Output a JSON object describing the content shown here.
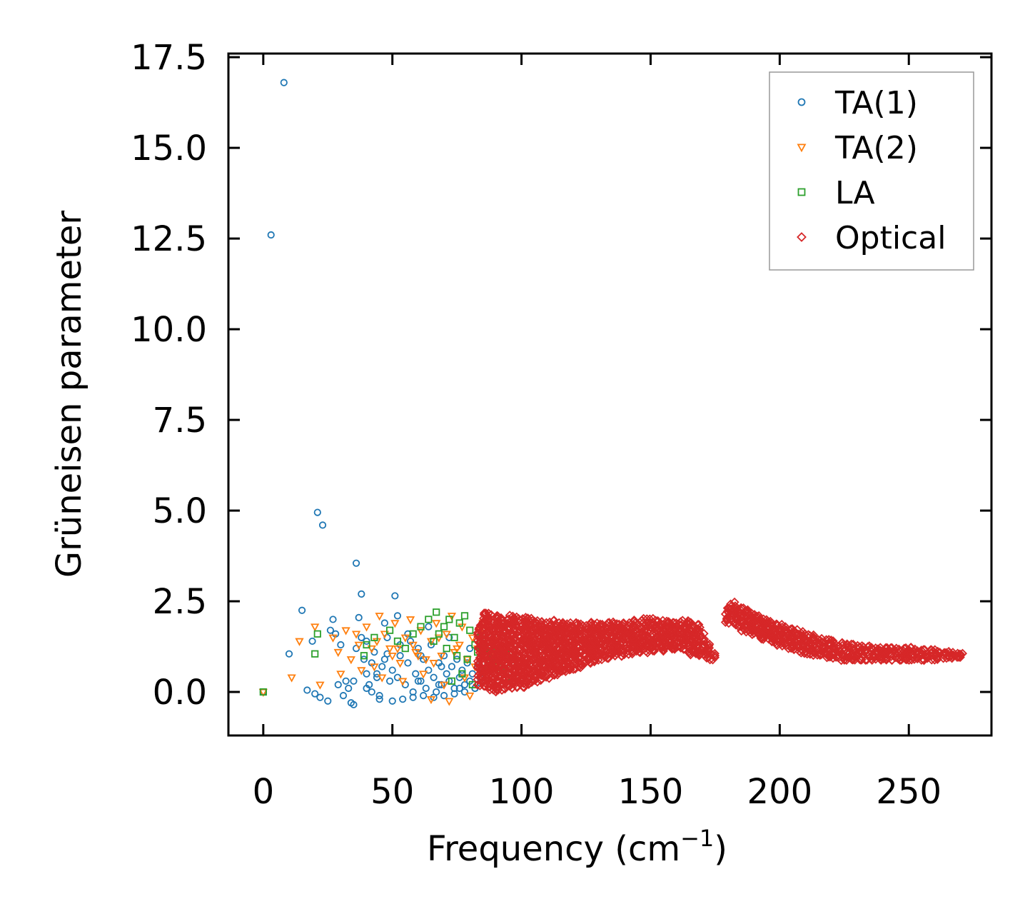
{
  "chart_data": {
    "type": "scatter",
    "title": "",
    "xlabel": "Frequency (cm",
    "xlabel_sup": "−1",
    "xlabel_close": ")",
    "ylabel": "Grüneisen parameter",
    "xlim": [
      -13.5,
      282
    ],
    "ylim": [
      -1.2,
      17.6
    ],
    "xticks": [
      0,
      50,
      100,
      150,
      200,
      250
    ],
    "xtick_labels": [
      "0",
      "50",
      "100",
      "150",
      "200",
      "250"
    ],
    "yticks": [
      0,
      2.5,
      5,
      7.5,
      10,
      12.5,
      15,
      17.5
    ],
    "ytick_labels": [
      "0.0",
      "2.5",
      "5.0",
      "7.5",
      "10.0",
      "12.5",
      "15.0",
      "17.5"
    ],
    "legend_position": "top-right",
    "series": [
      {
        "name": "TA(1)",
        "marker": "circle",
        "color": "#1f77b4",
        "x": [
          0,
          3,
          8,
          21,
          23,
          36,
          38,
          51,
          15,
          10,
          17,
          20,
          22,
          25,
          19,
          27,
          28,
          30,
          32,
          33,
          34,
          35,
          36,
          37,
          38,
          39,
          40,
          41,
          42,
          43,
          44,
          45,
          46,
          47,
          48,
          49,
          50,
          52,
          53,
          55,
          56,
          57,
          58,
          59,
          60,
          61,
          62,
          63,
          64,
          65,
          66,
          67,
          68,
          69,
          70,
          71,
          72,
          73,
          74,
          75,
          76,
          77,
          78,
          79,
          80,
          81,
          82,
          83,
          84,
          85,
          26,
          29,
          31,
          40,
          45,
          50,
          54,
          58,
          62,
          66,
          70,
          74,
          78,
          82,
          35,
          42,
          48,
          56,
          64,
          72,
          80,
          44,
          52,
          60,
          68,
          76,
          84,
          40,
          47,
          53,
          61,
          69,
          77
        ],
        "y": [
          0,
          12.6,
          16.8,
          4.95,
          4.6,
          3.55,
          2.7,
          2.65,
          2.25,
          1.05,
          0.05,
          -0.05,
          -0.15,
          -0.25,
          1.4,
          2.0,
          1.6,
          1.3,
          0.3,
          0.1,
          -0.3,
          -0.35,
          1.2,
          2.05,
          1.5,
          0.9,
          0.5,
          0.2,
          0.8,
          1.1,
          0.4,
          -0.1,
          0.7,
          1.9,
          1.5,
          0.3,
          0.6,
          2.1,
          1.0,
          0.2,
          0.8,
          1.4,
          0.0,
          0.5,
          1.2,
          0.3,
          0.9,
          0.1,
          0.6,
          1.3,
          0.4,
          0.0,
          0.8,
          0.2,
          1.0,
          0.5,
          0.3,
          0.7,
          0.1,
          0.9,
          0.4,
          0.6,
          0.2,
          0.8,
          0.3,
          0.5,
          0.1,
          0.7,
          0.4,
          0.6,
          1.7,
          0.2,
          -0.1,
          0.1,
          -0.2,
          -0.25,
          -0.2,
          -0.15,
          -0.1,
          -0.15,
          -0.1,
          -0.05,
          0.0,
          0.1,
          0.3,
          0.0,
          1.05,
          1.6,
          1.8,
          1.5,
          1.2,
          0.5,
          0.4,
          0.3,
          0.2,
          0.1,
          0.25,
          1.4,
          0.9,
          1.3,
          1.0,
          0.7,
          0.5
        ]
      },
      {
        "name": "TA(2)",
        "marker": "triangle_down",
        "color": "#ff7f0e",
        "x": [
          0,
          11,
          14,
          20,
          22,
          27,
          29,
          32,
          34,
          37,
          40,
          43,
          45,
          47,
          49,
          51,
          53,
          55,
          57,
          59,
          61,
          63,
          65,
          67,
          69,
          71,
          73,
          75,
          77,
          79,
          81,
          83,
          85,
          87,
          89,
          90,
          91,
          30,
          38,
          46,
          54,
          62,
          70,
          78,
          86,
          42,
          50,
          58,
          66,
          74,
          82,
          88,
          36,
          44,
          52,
          60,
          68,
          76,
          84,
          65,
          72,
          80
        ],
        "y": [
          0,
          0.4,
          1.4,
          1.8,
          0.2,
          1.5,
          1.1,
          1.7,
          0.9,
          1.3,
          1.8,
          0.7,
          2.1,
          1.6,
          1.2,
          1.9,
          0.8,
          1.5,
          2.0,
          1.1,
          1.7,
          0.9,
          1.4,
          1.9,
          1.0,
          1.6,
          2.1,
          1.2,
          1.8,
          0.9,
          1.5,
          1.2,
          1.9,
          1.1,
          1.4,
          0.8,
          1.6,
          0.5,
          0.6,
          0.4,
          0.3,
          0.5,
          0.2,
          0.4,
          0.6,
          1.2,
          1.0,
          1.3,
          0.8,
          1.1,
          0.7,
          1.0,
          1.6,
          1.4,
          1.2,
          1.0,
          1.5,
          1.3,
          1.7,
          -0.2,
          -0.25,
          -0.1
        ]
      },
      {
        "name": "LA",
        "marker": "square",
        "color": "#2ca02c",
        "x": [
          0,
          20,
          21,
          39,
          40,
          43,
          49,
          52,
          55,
          58,
          61,
          64,
          67,
          68,
          70,
          72,
          74,
          76,
          78,
          80,
          82,
          84,
          86,
          88,
          89,
          90,
          91,
          92,
          93,
          94,
          95,
          96,
          97,
          66,
          71,
          75,
          79,
          83,
          87,
          85,
          88,
          91,
          94,
          73,
          77,
          81
        ],
        "y": [
          0,
          1.05,
          1.6,
          1.0,
          1.3,
          1.5,
          1.7,
          1.4,
          1.2,
          1.6,
          1.8,
          2.0,
          2.2,
          1.6,
          1.8,
          2.0,
          1.5,
          1.9,
          2.1,
          1.7,
          1.3,
          1.5,
          1.2,
          0.9,
          1.1,
          0.8,
          1.0,
          0.6,
          0.9,
          1.2,
          0.5,
          0.8,
          0.95,
          1.4,
          1.2,
          1.0,
          0.9,
          1.1,
          0.7,
          1.4,
          1.2,
          0.7,
          0.4,
          0.3,
          0.5,
          0.2
        ]
      },
      {
        "name": "Optical",
        "marker": "diamond",
        "color": "#d62728",
        "x": [
          84,
          86,
          88,
          90,
          92,
          94,
          96,
          98,
          100,
          102,
          104,
          106,
          108,
          110,
          112,
          114,
          116,
          118,
          120,
          122,
          124,
          126,
          128,
          130,
          132,
          134,
          136,
          138,
          140,
          142,
          144,
          146,
          148,
          150,
          152,
          154,
          156,
          158,
          160,
          162,
          164,
          166,
          168,
          170,
          172,
          174,
          176,
          178,
          180,
          182,
          184,
          186,
          188,
          190,
          192,
          194,
          196,
          198,
          200,
          202,
          204,
          206,
          208,
          210,
          212,
          214,
          216,
          218,
          220,
          222,
          224,
          226,
          228,
          230,
          232,
          234,
          236,
          238,
          240,
          242,
          244,
          246,
          248,
          250,
          252,
          254,
          256,
          258,
          260,
          262,
          264,
          266,
          268,
          270
        ],
        "y_low": [
          0.2,
          0.15,
          0.05,
          0.0,
          0.05,
          0.1,
          0.1,
          0.15,
          0.15,
          0.2,
          0.25,
          0.3,
          0.35,
          0.4,
          0.45,
          0.5,
          0.55,
          0.6,
          0.65,
          0.7,
          0.75,
          0.8,
          0.85,
          0.9,
          0.95,
          0.95,
          1.0,
          1.0,
          1.05,
          1.05,
          1.1,
          1.1,
          1.1,
          1.15,
          1.15,
          1.15,
          1.2,
          1.2,
          1.2,
          1.2,
          1.1,
          1.05,
          1.0,
          1.0,
          0.95,
          0.9,
          null,
          null,
          1.9,
          1.85,
          1.8,
          1.7,
          1.65,
          1.6,
          1.5,
          1.45,
          1.4,
          1.35,
          1.3,
          1.25,
          1.2,
          1.15,
          1.1,
          1.05,
          1.05,
          1.0,
          1.0,
          0.95,
          0.95,
          0.95,
          0.9,
          0.9,
          0.9,
          0.9,
          0.9,
          0.9,
          0.9,
          0.9,
          0.9,
          0.9,
          0.9,
          0.9,
          0.9,
          0.9,
          0.9,
          0.9,
          0.9,
          0.9,
          0.9,
          0.92,
          0.95,
          0.95,
          0.95,
          0.97
        ],
        "y_high": [
          1.9,
          2.2,
          2.15,
          2.1,
          2.05,
          2.0,
          2.1,
          2.05,
          2.0,
          2.05,
          2.0,
          1.95,
          1.95,
          1.9,
          1.95,
          1.9,
          1.9,
          1.85,
          1.9,
          1.9,
          1.85,
          1.9,
          1.85,
          1.9,
          1.85,
          1.9,
          1.9,
          1.85,
          1.9,
          1.9,
          1.95,
          1.95,
          2.0,
          2.0,
          1.95,
          1.95,
          1.95,
          1.9,
          1.9,
          1.95,
          1.95,
          1.9,
          1.85,
          1.6,
          1.3,
          1.05,
          null,
          null,
          2.3,
          2.45,
          2.35,
          2.3,
          2.25,
          2.15,
          2.1,
          2.0,
          1.95,
          1.9,
          1.85,
          1.8,
          1.75,
          1.7,
          1.65,
          1.6,
          1.55,
          1.5,
          1.45,
          1.45,
          1.4,
          1.35,
          1.35,
          1.3,
          1.3,
          1.25,
          1.25,
          1.25,
          1.2,
          1.2,
          1.2,
          1.2,
          1.2,
          1.2,
          1.2,
          1.2,
          1.15,
          1.15,
          1.15,
          1.15,
          1.15,
          1.12,
          1.1,
          1.1,
          1.08,
          1.05
        ]
      }
    ]
  }
}
